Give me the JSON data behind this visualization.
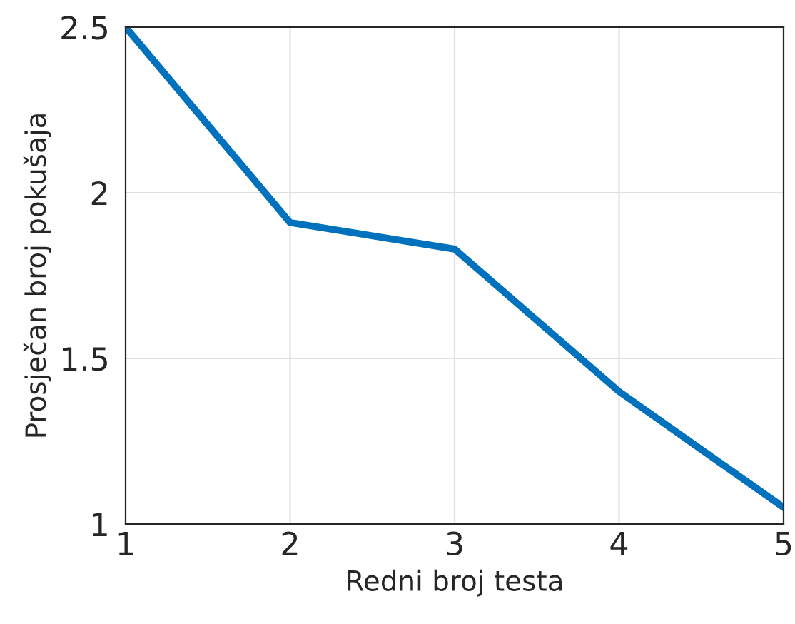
{
  "chart_data": {
    "type": "line",
    "xlabel": "Redni broj testa",
    "ylabel": "Prosječan broj pokušaja",
    "x": [
      1,
      2,
      3,
      4,
      5
    ],
    "series": [
      {
        "color": "#0072bd",
        "values": [
          2.5,
          1.91,
          1.83,
          1.4,
          1.05
        ]
      }
    ],
    "xlim": [
      1,
      5
    ],
    "xticks": [
      1,
      2,
      3,
      4,
      5
    ],
    "ylim": [
      1,
      2.5
    ],
    "yticks": [
      1,
      1.5,
      2,
      2.5
    ],
    "grid": true,
    "marker": "none",
    "line_style": "solid"
  }
}
